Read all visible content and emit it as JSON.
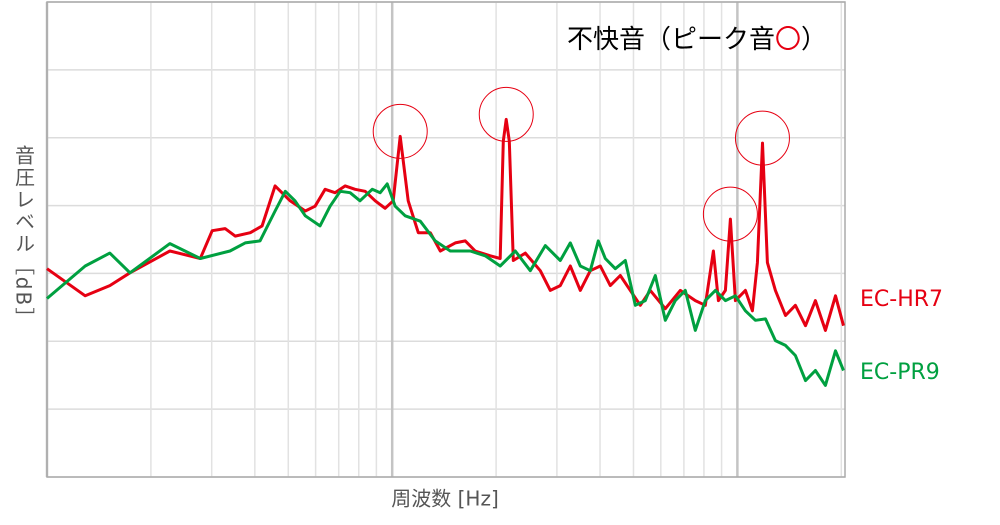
{
  "chart_data": {
    "type": "line",
    "title_parts": [
      {
        "text": "不快音（ピーク音",
        "color": "#000000"
      },
      {
        "text": "〇",
        "color": "#e60012"
      },
      {
        "text": "）",
        "color": "#000000"
      }
    ],
    "x_label": "周波数 [Hz]",
    "y_label": "音圧レベル［dB］",
    "log_x": true,
    "grid": true,
    "tick_labels": false,
    "xlim": [
      100,
      20500
    ],
    "ylim": [
      0,
      7
    ],
    "xticks": [
      100,
      200,
      300,
      400,
      500,
      600,
      700,
      800,
      900,
      1000,
      2000,
      3000,
      4000,
      5000,
      6000,
      7000,
      8000,
      9000,
      10000,
      20000
    ],
    "yticks": [
      0,
      1,
      2,
      3,
      4,
      5,
      6,
      7
    ],
    "series": [
      {
        "name": "EC-HR7",
        "color": "#e60012",
        "highlight": [
          23,
          34,
          57,
          62
        ],
        "x": [
          100,
          129,
          152,
          174,
          227,
          278,
          301,
          328,
          351,
          388,
          420,
          458,
          506,
          560,
          598,
          639,
          683,
          731,
          781,
          835,
          893,
          954,
          1007,
          1055,
          1113,
          1190,
          1289,
          1378,
          1523,
          1628,
          1740,
          1924,
          2056,
          2098,
          2140,
          2184,
          2243,
          2430,
          2685,
          2871,
          3069,
          3281,
          3507,
          3749,
          4008,
          4284,
          4580,
          4896,
          5233,
          5594,
          6183,
          6834,
          7554,
          8075,
          8519,
          8810,
          9231,
          9544,
          9867,
          10550,
          11050,
          11430,
          11820,
          12220,
          12890,
          13780,
          14730,
          15750,
          16830,
          17990,
          19240,
          20290
        ],
        "values": [
          3.07,
          2.67,
          2.82,
          3.01,
          3.33,
          3.22,
          3.63,
          3.66,
          3.55,
          3.6,
          3.7,
          4.29,
          4.07,
          3.92,
          3.99,
          4.24,
          4.19,
          4.29,
          4.24,
          4.21,
          4.07,
          3.96,
          4.07,
          5.02,
          4.07,
          3.6,
          3.6,
          3.33,
          3.45,
          3.48,
          3.33,
          3.26,
          3.22,
          4.95,
          5.27,
          4.95,
          3.19,
          3.3,
          3.04,
          2.75,
          2.82,
          3.11,
          2.75,
          3.04,
          3.11,
          2.82,
          2.97,
          2.75,
          2.53,
          2.75,
          2.48,
          2.75,
          2.6,
          2.53,
          3.33,
          2.6,
          2.75,
          3.8,
          2.6,
          2.75,
          2.45,
          3.16,
          4.92,
          3.16,
          2.75,
          2.38,
          2.53,
          2.23,
          2.6,
          2.16,
          2.67,
          2.23
        ]
      },
      {
        "name": "EC-PR9",
        "color": "#00a040",
        "x": [
          100,
          129,
          152,
          174,
          227,
          278,
          339,
          375,
          414,
          458,
          490,
          523,
          560,
          618,
          661,
          707,
          755,
          807,
          875,
          923,
          967,
          1020,
          1091,
          1206,
          1332,
          1473,
          1683,
          1860,
          2056,
          2273,
          2512,
          2777,
          3069,
          3281,
          3507,
          3749,
          3954,
          4144,
          4430,
          4735,
          5062,
          5411,
          5784,
          6183,
          6610,
          7067,
          7554,
          8075,
          8635,
          9231,
          9867,
          10550,
          11280,
          12060,
          12890,
          13780,
          14730,
          15750,
          16830,
          17990,
          19240,
          20290
        ],
        "values": [
          2.63,
          3.11,
          3.3,
          3.01,
          3.44,
          3.22,
          3.33,
          3.45,
          3.48,
          3.92,
          4.21,
          4.07,
          3.85,
          3.7,
          3.99,
          4.21,
          4.19,
          4.07,
          4.24,
          4.19,
          4.32,
          3.99,
          3.85,
          3.77,
          3.48,
          3.33,
          3.33,
          3.26,
          3.11,
          3.33,
          3.04,
          3.41,
          3.19,
          3.45,
          3.11,
          3.04,
          3.48,
          3.22,
          3.07,
          3.19,
          2.53,
          2.6,
          2.97,
          2.31,
          2.6,
          2.75,
          2.16,
          2.6,
          2.75,
          2.6,
          2.67,
          2.45,
          2.31,
          2.33,
          2.01,
          1.94,
          1.79,
          1.42,
          1.57,
          1.35,
          1.86,
          1.57
        ]
      }
    ]
  }
}
